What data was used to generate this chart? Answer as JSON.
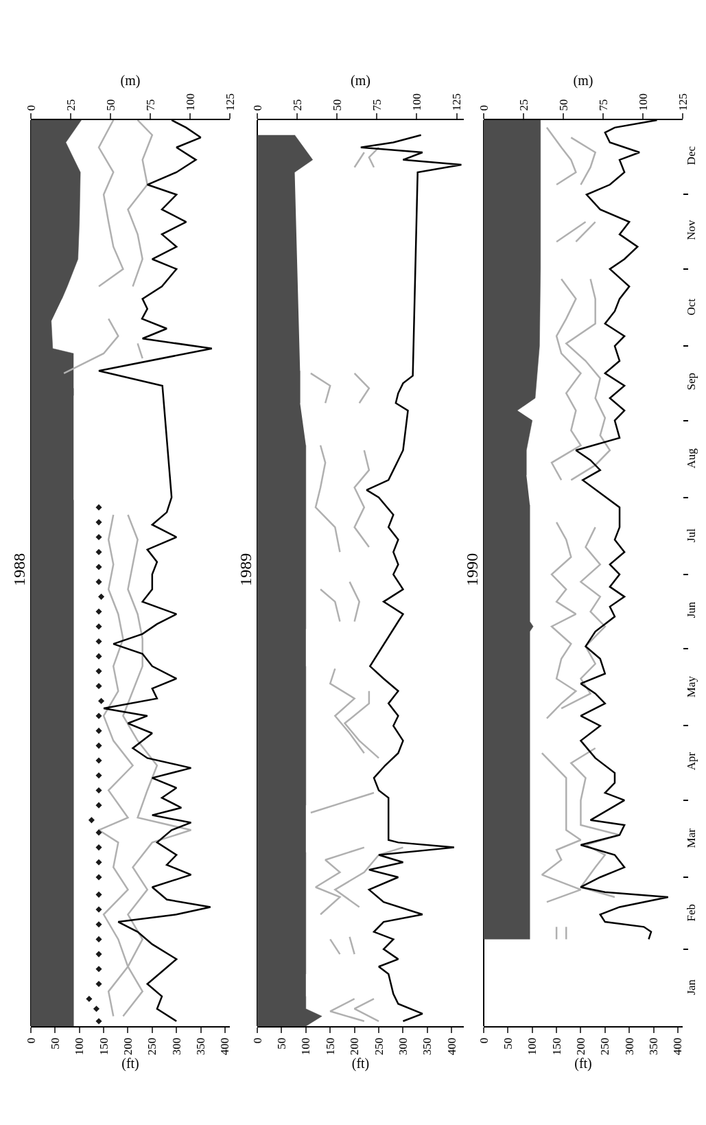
{
  "chart_data": [
    {
      "type": "line",
      "orientation": "horizontal",
      "title": "1988",
      "xlabel": "(ft)",
      "x2label": "(m)",
      "xlim": [
        0,
        410
      ],
      "xticks": [
        0,
        50,
        100,
        150,
        200,
        250,
        300,
        350,
        400
      ],
      "x2lim": [
        0,
        125
      ],
      "x2ticks": [
        0,
        25,
        50,
        75,
        100,
        125
      ],
      "ylim": [
        "--01-01",
        "--12-31"
      ],
      "yticks": [
        {
          "value": "--01-16",
          "label": "Jan"
        },
        {
          "value": "--02-15",
          "label": "Feb"
        },
        {
          "value": "--03-16",
          "label": "Mar"
        },
        {
          "value": "--04-16",
          "label": "Apr"
        },
        {
          "value": "--05-16",
          "label": "May"
        },
        {
          "value": "--06-16",
          "label": "Jun"
        },
        {
          "value": "--07-16",
          "label": "Jul"
        },
        {
          "value": "--08-16",
          "label": "Aug"
        },
        {
          "value": "--09-16",
          "label": "Sep"
        },
        {
          "value": "--10-16",
          "label": "Oct"
        },
        {
          "value": "--11-16",
          "label": "Nov"
        },
        {
          "value": "--12-16",
          "label": "Dec"
        }
      ],
      "tick_labels": "x",
      "series": [
        {
          "type": "area",
          "color": "#4d4d4d",
          "x": [
            "--01-01",
            "--07-31",
            "--08-01",
            "--09-11",
            "--09-14",
            "--09-15",
            "--09-28",
            "--09-30",
            "--10-11",
            "--10-12",
            "--10-20",
            "--10-25",
            "--11-05",
            "--11-20",
            "--12-10",
            "--12-22",
            "--12-31"
          ],
          "values": [
            88,
            88,
            null,
            88,
            88,
            null,
            88,
            45,
            42,
            null,
            64,
            75,
            97,
            100,
            102,
            72,
            104
          ]
        },
        {
          "type": "line",
          "color": "#b0b0b0",
          "x": [
            "--01-05",
            "--01-15",
            "--01-25",
            "--02-05",
            "--02-15",
            "--02-25",
            "--03-05",
            "--03-15",
            "--03-20",
            "--03-25",
            "--04-05",
            "--04-15",
            "--04-25",
            "--05-05",
            "--05-15",
            "--05-25",
            "--06-05",
            "--06-15",
            "--06-25",
            "--07-05",
            "--07-15",
            "--07-25",
            "--08-01",
            "--09-20",
            "--09-28",
            "--10-05",
            "--10-12",
            "--10-18",
            "--10-25",
            "--11-01",
            "--11-10",
            "--11-20",
            "--12-01",
            "--12-10",
            "--12-20",
            "--12-31"
          ],
          "values": [
            170,
            160,
            200,
            180,
            150,
            200,
            170,
            180,
            140,
            200,
            160,
            210,
            170,
            150,
            180,
            170,
            190,
            180,
            160,
            170,
            160,
            170,
            null,
            68,
            150,
            180,
            160,
            null,
            140,
            190,
            170,
            160,
            150,
            170,
            140,
            170
          ]
        },
        {
          "type": "line",
          "color": "#b0b0b0",
          "x": [
            "--01-05",
            "--01-15",
            "--01-25",
            "--02-05",
            "--02-15",
            "--02-25",
            "--03-05",
            "--03-15",
            "--03-20",
            "--03-25",
            "--04-05",
            "--04-15",
            "--04-25",
            "--05-05",
            "--05-15",
            "--05-25",
            "--06-05",
            "--06-15",
            "--06-25",
            "--07-05",
            "--07-15",
            "--07-25",
            "--08-01",
            "--09-26",
            "--10-02",
            "--10-10",
            "--10-25",
            "--11-05",
            "--11-15",
            "--11-25",
            "--12-05",
            "--12-15",
            "--12-25",
            "--12-31"
          ],
          "values": [
            190,
            230,
            200,
            230,
            200,
            240,
            210,
            250,
            330,
            220,
            240,
            260,
            220,
            190,
            210,
            230,
            230,
            220,
            200,
            210,
            220,
            200,
            null,
            230,
            220,
            null,
            210,
            230,
            220,
            200,
            240,
            230,
            250,
            220
          ]
        },
        {
          "type": "line",
          "color": "#000000",
          "x": [
            "--01-03",
            "--01-08",
            "--01-13",
            "--01-18",
            "--01-23",
            "--01-28",
            "--02-03",
            "--02-08",
            "--02-12",
            "--02-15",
            "--02-18",
            "--02-21",
            "--02-26",
            "--03-02",
            "--03-06",
            "--03-10",
            "--03-15",
            "--03-20",
            "--03-23",
            "--03-26",
            "--03-29",
            "--04-02",
            "--04-06",
            "--04-10",
            "--04-14",
            "--04-18",
            "--04-22",
            "--04-28",
            "--05-02",
            "--05-05",
            "--05-08",
            "--05-12",
            "--05-16",
            "--05-20",
            "--05-25",
            "--05-30",
            "--06-03",
            "--06-07",
            "--06-11",
            "--06-15",
            "--06-20",
            "--06-25",
            "--07-01",
            "--07-06",
            "--07-11",
            "--07-16",
            "--07-21",
            "--07-26",
            "--08-01",
            "--09-15",
            "--09-21",
            "--09-30",
            "--10-04",
            "--10-08",
            "--10-12",
            "--10-16",
            "--10-20",
            "--10-25",
            "--11-01",
            "--11-05",
            "--11-10",
            "--11-15",
            "--11-20",
            "--11-25",
            "--12-01",
            "--12-05",
            "--12-10",
            "--12-15",
            "--12-20",
            "--12-24",
            "--12-28",
            "--12-31"
          ],
          "values": [
            300,
            260,
            270,
            240,
            270,
            300,
            250,
            220,
            180,
            300,
            370,
            280,
            250,
            330,
            280,
            300,
            260,
            290,
            330,
            250,
            310,
            270,
            300,
            250,
            330,
            240,
            210,
            250,
            200,
            240,
            150,
            260,
            250,
            300,
            250,
            230,
            170,
            230,
            260,
            300,
            230,
            250,
            250,
            260,
            240,
            300,
            250,
            280,
            290,
            271,
            140,
            373,
            230,
            280,
            229,
            240,
            230,
            270,
            300,
            250,
            300,
            270,
            320,
            270,
            300,
            240,
            300,
            340,
            300,
            350,
            320,
            290
          ]
        },
        {
          "type": "scatter",
          "marker": "diamond",
          "color": "#1a1a1a",
          "x": [
            "--01-03",
            "--01-08",
            "--01-12",
            "--01-18",
            "--01-24",
            "--01-30",
            "--02-05",
            "--02-11",
            "--02-17",
            "--02-23",
            "--03-01",
            "--03-07",
            "--03-13",
            "--03-19",
            "--03-24",
            "--03-30",
            "--04-05",
            "--04-11",
            "--04-17",
            "--04-23",
            "--04-29",
            "--05-05",
            "--05-11",
            "--05-17",
            "--05-23",
            "--05-29",
            "--06-04",
            "--06-10",
            "--06-16",
            "--06-22",
            "--06-28",
            "--07-04",
            "--07-10",
            "--07-16",
            "--07-22",
            "--07-28"
          ],
          "values": [
            140,
            135,
            120,
            140,
            140,
            140,
            140,
            140,
            140,
            140,
            140,
            140,
            140,
            140,
            125,
            140,
            140,
            140,
            140,
            140,
            140,
            140,
            145,
            140,
            140,
            140,
            140,
            140,
            140,
            145,
            140,
            140,
            140,
            140,
            140,
            140
          ]
        }
      ]
    },
    {
      "type": "line",
      "orientation": "horizontal",
      "title": "1989",
      "xlabel": "(ft)",
      "x2label": "(m)",
      "xlim": [
        0,
        425
      ],
      "xticks": [
        0,
        50,
        100,
        150,
        200,
        250,
        300,
        350,
        400
      ],
      "x2lim": [
        0,
        129.5
      ],
      "x2ticks": [
        0,
        25,
        50,
        75,
        100,
        125
      ],
      "ylim": [
        "--01-01",
        "--12-31"
      ],
      "yticks": [
        {
          "value": "--01-16",
          "label": "Jan"
        },
        {
          "value": "--02-15",
          "label": "Feb"
        },
        {
          "value": "--03-16",
          "label": "Mar"
        },
        {
          "value": "--04-16",
          "label": "Apr"
        },
        {
          "value": "--05-16",
          "label": "May"
        },
        {
          "value": "--06-16",
          "label": "Jun"
        },
        {
          "value": "--07-16",
          "label": "Jul"
        },
        {
          "value": "--08-16",
          "label": "Aug"
        },
        {
          "value": "--09-16",
          "label": "Sep"
        },
        {
          "value": "--10-16",
          "label": "Oct"
        },
        {
          "value": "--11-16",
          "label": "Nov"
        },
        {
          "value": "--12-16",
          "label": "Dec"
        }
      ],
      "tick_labels": "x",
      "series": [
        {
          "type": "area",
          "color": "#4d4d4d",
          "x": [
            "--01-01",
            "--01-05",
            "--01-08",
            "--01-13",
            "--01-14",
            "--01-22",
            "--03-11",
            "--03-12",
            "--03-25",
            "--03-26",
            "--03-30",
            "--04-06",
            "--05-25",
            "--05-26",
            "--06-09",
            "--08-22",
            "--08-23",
            "--09-08",
            "--09-21",
            "--09-22",
            "--12-10",
            "--12-15",
            "--12-25"
          ],
          "values": [
            100,
            133,
            100,
            100,
            null,
            100,
            100,
            null,
            100,
            null,
            100,
            100,
            100,
            null,
            100,
            100,
            null,
            88,
            88,
            null,
            77,
            114,
            77
          ]
        },
        {
          "type": "line",
          "color": "#b0b0b0",
          "x": [
            "--01-03",
            "--01-07",
            "--01-12",
            "--01-14",
            "--01-30",
            "--02-05",
            "--02-10",
            "--02-15",
            "--02-22",
            "--02-26",
            "--03-03",
            "--03-08",
            "--03-13",
            "--03-16",
            "--03-27",
            "--04-04",
            "--04-06",
            "--04-20",
            "--04-28",
            "--05-05",
            "--05-12",
            "--05-18",
            "--05-24",
            "--05-26",
            "--06-12",
            "--06-20",
            "--06-25",
            "--07-02",
            "--07-10",
            "--07-20",
            "--07-28",
            "--08-05",
            "--08-15",
            "--08-22",
            "--08-25",
            "--09-08",
            "--09-15",
            "--09-20",
            "--09-22",
            "--12-12",
            "--12-18"
          ],
          "values": [
            220,
            150,
            200,
            null,
            170,
            150,
            null,
            130,
            170,
            120,
            170,
            140,
            220,
            null,
            110,
            240,
            null,
            220,
            190,
            160,
            200,
            150,
            160,
            null,
            170,
            160,
            130,
            null,
            170,
            160,
            120,
            130,
            140,
            130,
            null,
            140,
            150,
            110,
            null,
            200,
            220
          ]
        },
        {
          "type": "line",
          "color": "#b0b0b0",
          "x": [
            "--01-03",
            "--01-08",
            "--01-12",
            "--01-14",
            "--01-30",
            "--02-06",
            "--02-10",
            "--02-18",
            "--02-25",
            "--03-03",
            "--03-10",
            "--03-13",
            "--03-16",
            "--04-18",
            "--04-25",
            "--05-02",
            "--05-10",
            "--05-15",
            "--05-20",
            "--06-12",
            "--06-20",
            "--06-28",
            "--07-05",
            "--07-12",
            "--07-20",
            "--07-28",
            "--08-05",
            "--08-12",
            "--08-20",
            "--08-24",
            "--09-08",
            "--09-14",
            "--09-20",
            "--09-22",
            "--12-12",
            "--12-16",
            "--12-20"
          ],
          "values": [
            250,
            200,
            240,
            null,
            200,
            190,
            null,
            210,
            160,
            220,
            250,
            300,
            null,
            250,
            210,
            180,
            230,
            230,
            null,
            200,
            210,
            190,
            null,
            230,
            200,
            220,
            200,
            230,
            220,
            null,
            210,
            230,
            200,
            null,
            240,
            230,
            250
          ]
        },
        {
          "type": "line",
          "color": "#000000",
          "x": [
            "--01-03",
            "--01-06",
            "--01-10",
            "--01-14",
            "--01-22",
            "--01-25",
            "--01-28",
            "--02-01",
            "--02-05",
            "--02-08",
            "--02-12",
            "--02-15",
            "--02-20",
            "--02-25",
            "--03-01",
            "--03-04",
            "--03-07",
            "--03-10",
            "--03-13",
            "--03-15",
            "--03-16",
            "--04-02",
            "--04-05",
            "--04-10",
            "--04-15",
            "--04-20",
            "--04-25",
            "--05-01",
            "--05-05",
            "--05-10",
            "--05-15",
            "--05-20",
            "--05-25",
            "--06-12",
            "--06-15",
            "--06-20",
            "--06-25",
            "--07-01",
            "--07-05",
            "--07-10",
            "--07-15",
            "--07-20",
            "--07-25",
            "--08-01",
            "--08-04",
            "--08-08",
            "--08-12",
            "--08-16",
            "--08-20",
            "--09-05",
            "--09-08",
            "--09-12",
            "--09-16",
            "--09-19",
            "--12-10",
            "--12-13",
            "--12-15",
            "--12-18",
            "--12-20",
            "--12-22",
            "--12-25"
          ],
          "values": [
            300,
            340,
            290,
            280,
            270,
            250,
            290,
            260,
            280,
            240,
            260,
            340,
            260,
            230,
            290,
            230,
            300,
            250,
            405,
            290,
            270,
            270,
            250,
            240,
            263,
            290,
            300,
            280,
            290,
            270,
            290,
            260,
            232,
            290,
            300,
            260,
            300,
            280,
            290,
            280,
            290,
            270,
            280,
            250,
            225,
            270,
            280,
            290,
            300,
            310,
            285,
            290,
            300,
            320,
            330,
            420,
            300,
            340,
            213,
            280,
            337
          ]
        }
      ]
    },
    {
      "type": "line",
      "orientation": "horizontal",
      "title": "1990",
      "xlabel": "(ft)",
      "x2label": "(m)",
      "xlim": [
        0,
        410
      ],
      "xticks": [
        0,
        50,
        100,
        150,
        200,
        250,
        300,
        350,
        400
      ],
      "x2lim": [
        0,
        125
      ],
      "x2ticks": [
        0,
        25,
        50,
        75,
        100,
        125
      ],
      "ylim": [
        "--01-01",
        "--12-31"
      ],
      "yticks": [
        {
          "value": "--01-16",
          "label": "Jan"
        },
        {
          "value": "--02-15",
          "label": "Feb"
        },
        {
          "value": "--03-16",
          "label": "Mar"
        },
        {
          "value": "--04-16",
          "label": "Apr"
        },
        {
          "value": "--05-16",
          "label": "May"
        },
        {
          "value": "--06-16",
          "label": "Jun"
        },
        {
          "value": "--07-16",
          "label": "Jul"
        },
        {
          "value": "--08-16",
          "label": "Aug"
        },
        {
          "value": "--09-16",
          "label": "Sep"
        },
        {
          "value": "--10-16",
          "label": "Oct"
        },
        {
          "value": "--11-16",
          "label": "Nov"
        },
        {
          "value": "--12-16",
          "label": "Dec"
        },
        {
          "value": "--02-01",
          "label": null
        },
        {
          "value": "--03-01",
          "label": null
        },
        {
          "value": "--04-01",
          "label": null
        },
        {
          "value": "--05-01",
          "label": null
        },
        {
          "value": "--06-01",
          "label": null
        },
        {
          "value": "--07-01",
          "label": null
        },
        {
          "value": "--08-01",
          "label": null
        },
        {
          "value": "--09-01",
          "label": null
        },
        {
          "value": "--10-01",
          "label": null
        },
        {
          "value": "--11-01",
          "label": null
        },
        {
          "value": "--12-01",
          "label": null
        }
      ],
      "series": [
        {
          "type": "area",
          "color": "#4d4d4d",
          "x": [
            "--02-05",
            "--06-08",
            "--06-10",
            "--06-12",
            "--07-29",
            "--07-30",
            "--08-10",
            "--08-20",
            "--09-01",
            "--09-05",
            "--09-10",
            "--10-01",
            "--11-01",
            "--12-01",
            "--12-31"
          ],
          "values": [
            95,
            95,
            102,
            95,
            95,
            null,
            88,
            88,
            100,
            69,
            106,
            115,
            117,
            117,
            117
          ]
        },
        {
          "type": "line",
          "color": "#b0b0b0",
          "x": [
            "--02-05",
            "--02-10",
            "--02-12",
            "--02-20",
            "--02-25",
            "--03-02",
            "--03-08",
            "--03-12",
            "--03-16",
            "--03-20",
            "--04-01",
            "--04-10",
            "--04-16",
            "--04-20",
            "--04-22",
            "--05-04",
            "--05-10",
            "--05-15",
            "--05-20",
            "--05-28",
            "--06-03",
            "--06-10",
            "--06-15",
            "--06-20",
            "--06-25",
            "--07-01",
            "--07-08",
            "--07-15",
            "--07-22",
            "--07-26",
            "--08-08",
            "--08-15",
            "--08-22",
            "--08-28",
            "--09-05",
            "--09-12",
            "--09-20",
            "--09-28",
            "--10-05",
            "--10-12",
            "--10-20",
            "--10-28",
            "--11-05",
            "--11-12",
            "--11-20",
            "--11-25",
            "--12-05",
            "--12-10",
            "--12-15",
            "--12-20",
            "--12-28"
          ],
          "values": [
            150,
            150,
            null,
            130,
            200,
            120,
            160,
            150,
            200,
            170,
            170,
            170,
            140,
            120,
            null,
            130,
            160,
            190,
            150,
            160,
            180,
            140,
            190,
            150,
            170,
            140,
            180,
            170,
            150,
            null,
            160,
            140,
            200,
            180,
            190,
            170,
            200,
            160,
            150,
            170,
            190,
            160,
            null,
            150,
            210,
            null,
            150,
            190,
            180,
            160,
            130
          ]
        },
        {
          "type": "line",
          "color": "#b0b0b0",
          "x": [
            "--02-05",
            "--02-10",
            "--02-12",
            "--02-22",
            "--02-26",
            "--03-05",
            "--03-10",
            "--03-14",
            "--03-18",
            "--03-22",
            "--04-01",
            "--04-10",
            "--04-16",
            "--04-22",
            "--04-24",
            "--05-08",
            "--05-14",
            "--05-20",
            "--05-26",
            "--06-02",
            "--06-10",
            "--06-16",
            "--06-22",
            "--06-28",
            "--07-05",
            "--07-12",
            "--07-20",
            "--07-26",
            "--08-08",
            "--08-14",
            "--08-20",
            "--08-26",
            "--09-02",
            "--09-10",
            "--09-18",
            "--09-25",
            "--10-02",
            "--10-10",
            "--10-20",
            "--10-28",
            "--11-05",
            "--11-12",
            "--11-20",
            "--11-25",
            "--12-05",
            "--12-12",
            "--12-18",
            "--12-24"
          ],
          "values": [
            170,
            170,
            null,
            270,
            200,
            230,
            250,
            210,
            280,
            200,
            200,
            210,
            180,
            230,
            null,
            160,
            220,
            200,
            230,
            210,
            250,
            220,
            240,
            200,
            240,
            210,
            230,
            null,
            180,
            230,
            260,
            240,
            250,
            230,
            240,
            210,
            170,
            230,
            230,
            220,
            null,
            190,
            230,
            null,
            200,
            220,
            230,
            180
          ]
        },
        {
          "type": "line",
          "color": "#000000",
          "x": [
            "--02-05",
            "--02-08",
            "--02-10",
            "--02-12",
            "--02-15",
            "--02-18",
            "--02-22",
            "--02-24",
            "--02-26",
            "--03-01",
            "--03-05",
            "--03-10",
            "--03-14",
            "--03-18",
            "--03-22",
            "--03-24",
            "--04-01",
            "--04-04",
            "--04-08",
            "--04-12",
            "--04-18",
            "--04-25",
            "--05-01",
            "--05-05",
            "--05-10",
            "--05-14",
            "--05-18",
            "--05-22",
            "--05-28",
            "--06-02",
            "--06-08",
            "--06-14",
            "--06-18",
            "--06-22",
            "--06-26",
            "--07-01",
            "--07-05",
            "--07-10",
            "--07-15",
            "--07-20",
            "--07-28",
            "--08-08",
            "--08-12",
            "--08-16",
            "--08-20",
            "--08-25",
            "--09-01",
            "--09-05",
            "--09-10",
            "--09-15",
            "--09-20",
            "--09-25",
            "--10-01",
            "--10-05",
            "--10-10",
            "--10-15",
            "--10-20",
            "--10-25",
            "--11-01",
            "--11-05",
            "--11-10",
            "--11-15",
            "--11-20",
            "--11-25",
            "--12-01",
            "--12-05",
            "--12-10",
            "--12-15",
            "--12-18",
            "--12-22",
            "--12-26",
            "--12-28",
            "--12-31"
          ],
          "values": [
            340,
            345,
            330,
            250,
            240,
            280,
            380,
            250,
            200,
            240,
            290,
            270,
            200,
            280,
            290,
            220,
            290,
            250,
            270,
            270,
            230,
            200,
            240,
            200,
            250,
            230,
            200,
            250,
            240,
            210,
            230,
            270,
            260,
            290,
            260,
            280,
            260,
            290,
            270,
            280,
            280,
            204,
            240,
            220,
            190,
            280,
            270,
            290,
            260,
            290,
            250,
            280,
            270,
            290,
            250,
            270,
            280,
            300,
            260,
            290,
            317,
            280,
            300,
            240,
            212,
            260,
            290,
            280,
            321,
            260,
            250,
            270,
            357
          ]
        }
      ]
    }
  ]
}
